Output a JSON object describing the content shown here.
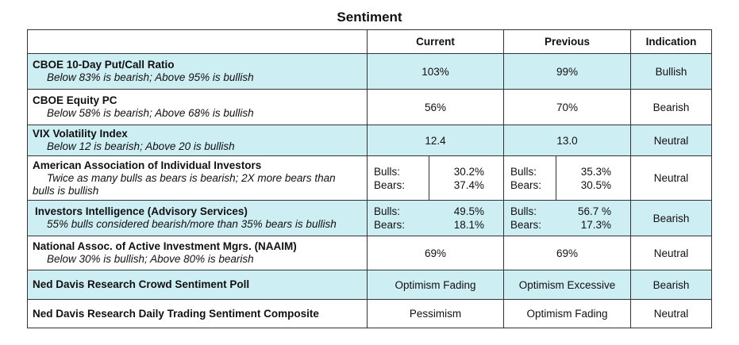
{
  "title": "Sentiment",
  "headers": {
    "indicator": "",
    "current": "Current",
    "previous": "Previous",
    "indication": "Indication"
  },
  "rows": [
    {
      "name": "CBOE 10-Day Put/Call Ratio",
      "desc": "Below 83% is bearish; Above 95% is bullish",
      "current": "103%",
      "previous": "99%",
      "indication": "Bullish"
    },
    {
      "name": "CBOE Equity PC",
      "desc": "Below 58% is bearish; Above 68% is bullish",
      "current": "56%",
      "previous": "70%",
      "indication": "Bearish"
    },
    {
      "name": "VIX Volatility Index",
      "desc": "Below 12 is bearish; Above 20 is bullish",
      "current": "12.4",
      "previous": "13.0",
      "indication": "Neutral"
    },
    {
      "name": "American Association of Individual Investors",
      "desc": "Twice as many bulls as bears is bearish; 2X more bears than",
      "desc2": "bulls is bullish",
      "current": {
        "bulls_label": "Bulls:",
        "bulls": "30.2%",
        "bears_label": "Bears:",
        "bears": "37.4%"
      },
      "previous": {
        "bulls_label": "Bulls:",
        "bulls": "35.3%",
        "bears_label": "Bears:",
        "bears": "30.5%"
      },
      "indication": "Neutral"
    },
    {
      "name": "Investors Intelligence (Advisory Services)",
      "desc": "55% bulls considered bearish/more than 35% bears is bullish",
      "current": {
        "bulls_label": "Bulls:",
        "bulls": "49.5%",
        "bears_label": "Bears:",
        "bears": "18.1%"
      },
      "previous": {
        "bulls_label": "Bulls:",
        "bulls": "56.7 %",
        "bears_label": "Bears:",
        "bears": "17.3%"
      },
      "indication": "Bearish"
    },
    {
      "name": "National Assoc. of Active Investment Mgrs. (NAAIM)",
      "desc": "Below 30% is bullish; Above 80% is bearish",
      "current": "69%",
      "previous": "69%",
      "indication": "Neutral"
    },
    {
      "name": "Ned Davis Research Crowd Sentiment Poll",
      "current": "Optimism Fading",
      "previous": "Optimism Excessive",
      "indication": "Bearish"
    },
    {
      "name": "Ned Davis Research Daily Trading Sentiment Composite",
      "current": "Pessimism",
      "previous": "Optimism Fading",
      "indication": "Neutral"
    }
  ],
  "colors": {
    "shaded_row": "#cdeef3",
    "border": "#333333"
  }
}
